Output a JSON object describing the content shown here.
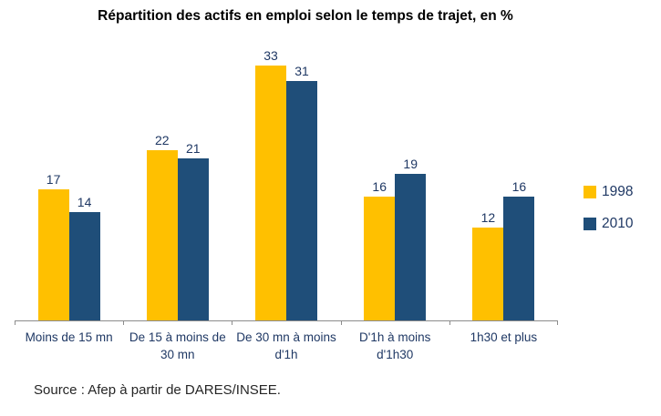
{
  "title": "Répartition des actifs en emploi selon le temps de trajet, en %",
  "source": "Source : Afep à partir de DARES/INSEE.",
  "legend": {
    "position": "right",
    "items": [
      {
        "label": "1998",
        "color": "#FFC000"
      },
      {
        "label": "2010",
        "color": "#1F4E79"
      }
    ]
  },
  "colors": {
    "series_1998": "#FFC000",
    "series_2010": "#1F4E79",
    "axis_line": "#8C8C8C",
    "label_text": "#1F3864",
    "title_text": "#000000",
    "source_text": "#262626"
  },
  "chart_data": {
    "type": "bar",
    "title": "Répartition des actifs en emploi selon le temps de trajet, en %",
    "categories": [
      "Moins de 15 mn",
      "De 15 à moins de 30 mn",
      "De 30 mn à moins d'1h",
      "D'1h à moins d'1h30",
      "1h30 et plus"
    ],
    "series": [
      {
        "name": "1998",
        "color": "#FFC000",
        "values": [
          17,
          22,
          33,
          16,
          12
        ]
      },
      {
        "name": "2010",
        "color": "#1F4E79",
        "values": [
          14,
          21,
          31,
          19,
          16
        ]
      }
    ],
    "xlabel": "",
    "ylabel": "",
    "ylim": [
      0,
      35
    ],
    "grid": false,
    "legend_position": "right",
    "data_labels": true
  }
}
